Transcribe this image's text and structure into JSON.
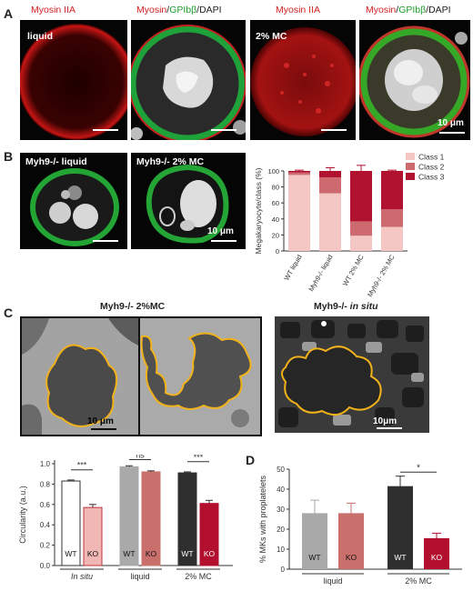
{
  "panels": {
    "A": {
      "letter": "A",
      "captions": {
        "c1": "Myosin IIA",
        "c2_a": "Myosin",
        "c2_b": "/",
        "c2_c": "GPIbβ",
        "c2_d": "/DAPI",
        "c3": "Myosin IIA",
        "c4_a": "Myosin",
        "c4_b": "/",
        "c4_c": "GPIbβ",
        "c4_d": "/DAPI"
      },
      "labels": {
        "liquid": "liquid",
        "mc": "2% MC"
      },
      "scale": "10 μm"
    },
    "B": {
      "letter": "B",
      "labels": {
        "liquid": "Myh9-/- liquid",
        "mc": "Myh9-/- 2% MC"
      },
      "scale": "10 μm"
    },
    "C": {
      "letter": "C",
      "titles": {
        "left": "Myh9-/- 2%MC",
        "right_a": "Myh9-/- ",
        "right_b": "in situ"
      },
      "scale_left": "10 μm",
      "scale_right": "10μm"
    },
    "D": {
      "letter": "D"
    }
  },
  "colors": {
    "class1": "#f4c6c4",
    "class2": "#cc6a6f",
    "class3": "#b0122f",
    "wt_insitu": "#ffffff",
    "ko_insitu": "#f0b7b5",
    "wt_liquid": "#a9a9a9",
    "ko_liquid": "#c9706d",
    "wt_mc": "#2f2f2f",
    "ko_mc": "#b3102f"
  },
  "chart_data": [
    {
      "type": "bar",
      "stacked": true,
      "categories": [
        "WT liquid",
        "Myh9-/- liquid",
        "WT 2% MC",
        "Myh9-/- 2% MC"
      ],
      "series": [
        {
          "name": "Class 1",
          "values": [
            95,
            72,
            19,
            30
          ],
          "errors": [
            2,
            5,
            3,
            2
          ]
        },
        {
          "name": "Class 2",
          "values": [
            3,
            20,
            18,
            22
          ],
          "errors": [
            1,
            3,
            4,
            2
          ]
        },
        {
          "name": "Class 3",
          "values": [
            2,
            8,
            63,
            48
          ],
          "errors": [
            1,
            4,
            7,
            1
          ]
        }
      ],
      "ylabel": "Megakaryocyte/class (%)",
      "ylim": [
        0,
        100
      ],
      "yticks": [
        0,
        20,
        40,
        60,
        80,
        100
      ],
      "legend": "top-right"
    },
    {
      "type": "bar",
      "categories": [
        "WT",
        "KO",
        "WT",
        "KO",
        "WT",
        "KO"
      ],
      "groups": [
        "In situ",
        "liquid",
        "2% MC"
      ],
      "values": [
        0.83,
        0.57,
        0.97,
        0.92,
        0.91,
        0.61
      ],
      "errors": [
        0.01,
        0.03,
        0.01,
        0.01,
        0.01,
        0.03
      ],
      "ylabel": "Circularity (a.u.)",
      "ylim": [
        0,
        1.0
      ],
      "yticks": [
        0.0,
        0.2,
        0.4,
        0.6,
        0.8,
        1.0
      ],
      "significance": [
        "***",
        "ns",
        "***"
      ]
    },
    {
      "type": "bar",
      "categories": [
        "WT",
        "KO",
        "WT",
        "KO"
      ],
      "groups": [
        "liquid",
        "2% MC"
      ],
      "values": [
        28,
        28,
        41.5,
        15.5
      ],
      "errors": [
        6.5,
        5,
        5,
        2.5
      ],
      "ylabel": "% MKs with proplatelets",
      "ylim": [
        0,
        50
      ],
      "yticks": [
        0,
        10,
        20,
        30,
        40,
        50
      ],
      "significance": [
        "*"
      ]
    }
  ]
}
